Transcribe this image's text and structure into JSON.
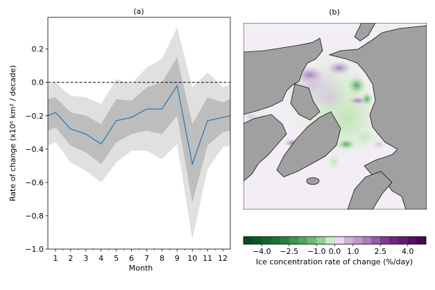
{
  "chart_data": [
    {
      "type": "line",
      "panel_label": "(a)",
      "xlabel": "Month",
      "ylabel": "Rate of change (x10⁶ km² / decade)",
      "xlim": [
        0.5,
        12.5
      ],
      "ylim": [
        -1.0,
        0.39
      ],
      "xticks": [
        1,
        2,
        3,
        4,
        5,
        6,
        7,
        8,
        9,
        10,
        11,
        12
      ],
      "xtick_labels": [
        "1",
        "2",
        "3",
        "4",
        "5",
        "6",
        "7",
        "8",
        "9",
        "10",
        "11",
        "12"
      ],
      "yticks": [
        0.2,
        0.0,
        -0.2,
        -0.4,
        -0.6,
        -0.8,
        -1.0
      ],
      "ytick_labels": [
        "0.2",
        "0.0",
        "−0.2",
        "−0.4",
        "−0.6",
        "−0.8",
        "−1.0"
      ],
      "reference_line": {
        "y": 0.0,
        "style": "dashed",
        "color": "#000000"
      },
      "x": [
        0.5,
        1,
        2,
        3,
        4,
        5,
        6,
        7,
        8,
        9,
        10,
        11,
        12,
        12.5
      ],
      "series": [
        {
          "role": "mean",
          "color": "#1f77b4",
          "values": [
            -0.2,
            -0.18,
            -0.28,
            -0.31,
            -0.37,
            -0.23,
            -0.21,
            -0.16,
            -0.16,
            -0.02,
            -0.49,
            -0.23,
            -0.21,
            -0.2
          ]
        },
        {
          "role": "inner-band-upper",
          "color": "#bdbdbd",
          "values": [
            -0.1,
            -0.09,
            -0.18,
            -0.2,
            -0.25,
            -0.1,
            -0.11,
            -0.03,
            0.0,
            0.15,
            -0.25,
            -0.09,
            -0.12,
            -0.1
          ]
        },
        {
          "role": "inner-band-lower",
          "color": "#bdbdbd",
          "values": [
            -0.29,
            -0.27,
            -0.38,
            -0.42,
            -0.49,
            -0.36,
            -0.31,
            -0.29,
            -0.31,
            -0.2,
            -0.72,
            -0.38,
            -0.3,
            -0.29
          ]
        },
        {
          "role": "outer-band-upper",
          "color": "#e0e0e0",
          "values": [
            -0.01,
            0.0,
            -0.08,
            -0.09,
            -0.13,
            0.02,
            -0.01,
            0.09,
            0.14,
            0.33,
            -0.03,
            0.06,
            -0.03,
            -0.01
          ]
        },
        {
          "role": "outer-band-lower",
          "color": "#e0e0e0",
          "values": [
            -0.38,
            -0.36,
            -0.48,
            -0.53,
            -0.6,
            -0.48,
            -0.41,
            -0.41,
            -0.46,
            -0.37,
            -0.94,
            -0.52,
            -0.39,
            -0.38
          ]
        }
      ],
      "grid": false
    },
    {
      "type": "heatmap",
      "panel_label": "(b)",
      "projection": "polar-stereographic-arctic",
      "land_color": "#a0a0a0",
      "coastline_color": "#000000",
      "colorbar": {
        "label": "Ice concentration rate of change (%/day)",
        "vmin": -5.0,
        "vmax": 5.0,
        "bins": 20,
        "colormap": "green-white-purple",
        "ticks": [
          -4.0,
          -2.5,
          -1.0,
          0.0,
          1.0,
          2.5,
          4.0
        ],
        "tick_labels": [
          "−4.0",
          "−2.5",
          "−1.0",
          "0.0",
          "1.0",
          "2.5",
          "4.0"
        ],
        "orientation": "horizontal",
        "placement": "bottom"
      }
    }
  ]
}
